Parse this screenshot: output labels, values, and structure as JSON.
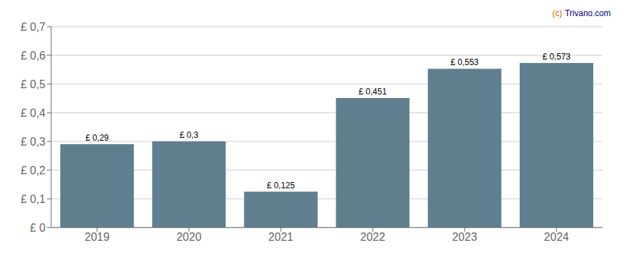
{
  "chart_data": {
    "type": "bar",
    "categories": [
      "2019",
      "2020",
      "2021",
      "2022",
      "2023",
      "2024"
    ],
    "values": [
      0.29,
      0.3,
      0.125,
      0.451,
      0.553,
      0.573
    ],
    "value_labels": [
      "£ 0,29",
      "£ 0,3",
      "£ 0,125",
      "£ 0,451",
      "£ 0,553",
      "£ 0,573"
    ],
    "data_labels": true,
    "color": "#5f7f8f",
    "ylim": [
      0,
      0.7
    ],
    "yticks": [
      {
        "value": 0,
        "label": "£ 0"
      },
      {
        "value": 0.1,
        "label": "£ 0,1"
      },
      {
        "value": 0.2,
        "label": "£ 0,2"
      },
      {
        "value": 0.3,
        "label": "£ 0,3"
      },
      {
        "value": 0.4,
        "label": "£ 0,4"
      },
      {
        "value": 0.5,
        "label": "£ 0,5"
      },
      {
        "value": 0.6,
        "label": "£ 0,6"
      },
      {
        "value": 0.7,
        "label": "£ 0,7"
      }
    ],
    "grid": true,
    "annotations": [
      {
        "text": "(c)",
        "color": "#cc6600"
      },
      {
        "text": "Trivano.com",
        "color": "#000080"
      }
    ]
  }
}
